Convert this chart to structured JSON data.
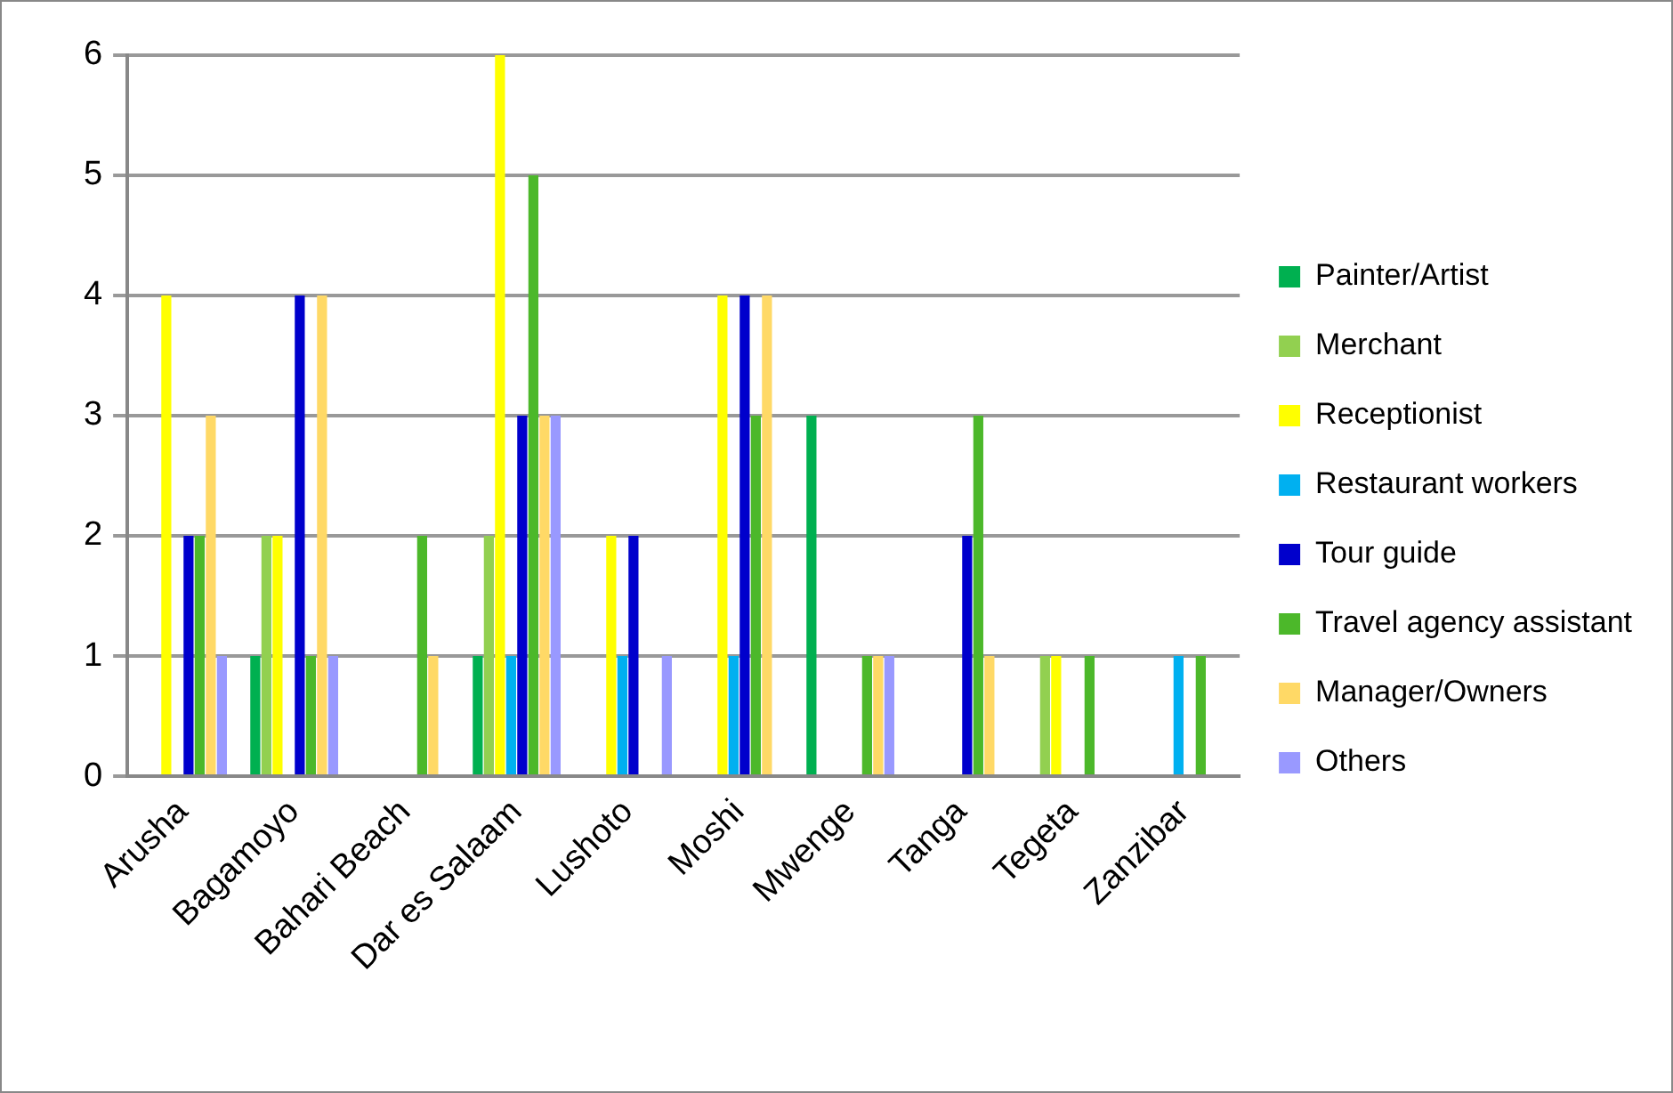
{
  "chart_data": {
    "type": "bar",
    "categories": [
      "Arusha",
      "Bagamoyo",
      "Bahari Beach",
      "Dar es Salaam",
      "Lushoto",
      "Moshi",
      "Mwenge",
      "Tanga",
      "Tegeta",
      "Zanzibar"
    ],
    "series": [
      {
        "name": "Painter/Artist",
        "color": "#00b050",
        "values": [
          0,
          1,
          0,
          1,
          0,
          0,
          3,
          0,
          0,
          0
        ]
      },
      {
        "name": "Merchant",
        "color": "#92d050",
        "values": [
          0,
          2,
          0,
          2,
          0,
          0,
          0,
          0,
          1,
          0
        ]
      },
      {
        "name": "Receptionist",
        "color": "#ffff00",
        "values": [
          4,
          2,
          0,
          6,
          2,
          4,
          0,
          0,
          1,
          0
        ]
      },
      {
        "name": "Restaurant workers",
        "color": "#00b0f0",
        "values": [
          0,
          0,
          0,
          1,
          1,
          1,
          0,
          0,
          0,
          1
        ]
      },
      {
        "name": "Tour guide",
        "color": "#0000cc",
        "values": [
          2,
          4,
          0,
          3,
          2,
          4,
          0,
          2,
          0,
          0
        ]
      },
      {
        "name": "Travel agency assistant",
        "color": "#4cb82a",
        "values": [
          2,
          1,
          2,
          5,
          0,
          3,
          1,
          3,
          1,
          1
        ]
      },
      {
        "name": "Manager/Owners",
        "color": "#ffd966",
        "values": [
          3,
          4,
          1,
          3,
          0,
          4,
          1,
          1,
          0,
          0
        ]
      },
      {
        "name": "Others",
        "color": "#9999ff",
        "values": [
          1,
          1,
          0,
          3,
          1,
          0,
          1,
          0,
          0,
          0
        ]
      }
    ],
    "ylim": [
      0,
      6
    ],
    "yticks": [
      0,
      1,
      2,
      3,
      4,
      5,
      6
    ],
    "grid": "y",
    "legend": "right"
  }
}
